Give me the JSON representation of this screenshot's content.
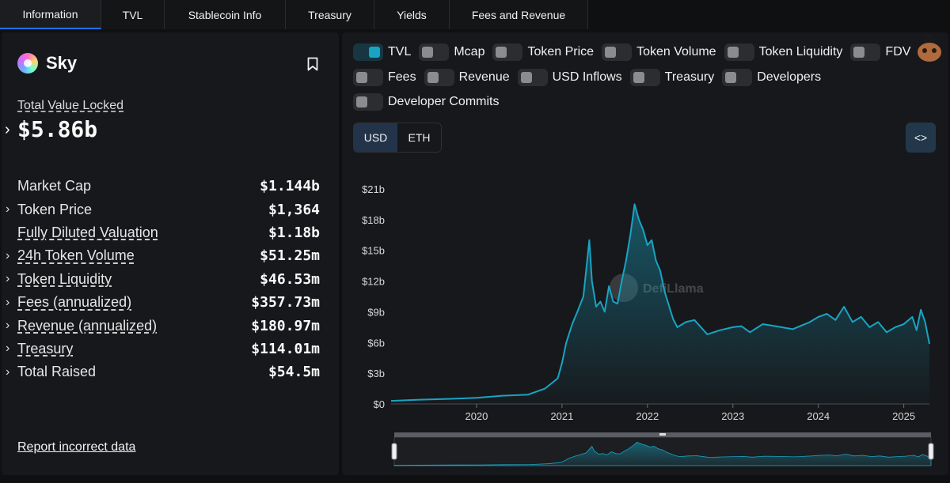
{
  "tabs": [
    {
      "label": "Information",
      "active": true
    },
    {
      "label": "TVL"
    },
    {
      "label": "Stablecoin Info"
    },
    {
      "label": "Treasury"
    },
    {
      "label": "Yields"
    },
    {
      "label": "Fees and Revenue"
    }
  ],
  "protocol": {
    "name": "Sky",
    "tvl_label": "Total Value Locked",
    "tvl_value": "$5.86b",
    "report_link": "Report incorrect data"
  },
  "stats": [
    {
      "label": "Market Cap",
      "value": "$1.144b",
      "chevron": false,
      "underline": false
    },
    {
      "label": "Token Price",
      "value": "$1,364",
      "chevron": true,
      "underline": false
    },
    {
      "label": "Fully Diluted Valuation",
      "value": "$1.18b",
      "chevron": false,
      "underline": true
    },
    {
      "label": "24h Token Volume",
      "value": "$51.25m",
      "chevron": true,
      "underline": true
    },
    {
      "label": "Token Liquidity",
      "value": "$46.53m",
      "chevron": true,
      "underline": true
    },
    {
      "label": "Fees (annualized)",
      "value": "$357.73m",
      "chevron": true,
      "underline": true
    },
    {
      "label": "Revenue (annualized)",
      "value": "$180.97m",
      "chevron": true,
      "underline": true
    },
    {
      "label": "Treasury",
      "value": "$114.01m",
      "chevron": true,
      "underline": true
    },
    {
      "label": "Total Raised",
      "value": "$54.5m",
      "chevron": true,
      "underline": false
    }
  ],
  "toggles": {
    "row1": [
      {
        "label": "TVL",
        "on": true
      },
      {
        "label": "Mcap",
        "on": false
      },
      {
        "label": "Token Price",
        "on": false
      },
      {
        "label": "Token Volume",
        "on": false
      },
      {
        "label": "Token Liquidity",
        "on": false
      },
      {
        "label": "FDV",
        "on": false
      }
    ],
    "row2": [
      {
        "label": "Fees",
        "on": false
      },
      {
        "label": "Revenue",
        "on": false
      },
      {
        "label": "USD Inflows",
        "on": false
      },
      {
        "label": "Treasury",
        "on": false
      },
      {
        "label": "Developers",
        "on": false
      }
    ],
    "row3": [
      {
        "label": "Developer Commits",
        "on": false
      }
    ]
  },
  "denomination": {
    "options": [
      "USD",
      "ETH"
    ],
    "selected": "USD"
  },
  "embed_label": "<>",
  "watermark": "DefiLlama",
  "colors": {
    "accent": "#18a4c3",
    "tab_active": "#2172e5"
  },
  "chart_data": {
    "type": "area",
    "series": [
      {
        "name": "TVL",
        "x": [
          2019.0,
          2019.3,
          2019.7,
          2020.0,
          2020.3,
          2020.6,
          2020.8,
          2020.95,
          2021.0,
          2021.05,
          2021.12,
          2021.18,
          2021.25,
          2021.32,
          2021.35,
          2021.4,
          2021.45,
          2021.5,
          2021.55,
          2021.6,
          2021.65,
          2021.7,
          2021.75,
          2021.8,
          2021.85,
          2021.9,
          2021.95,
          2022.0,
          2022.05,
          2022.1,
          2022.15,
          2022.2,
          2022.3,
          2022.35,
          2022.45,
          2022.55,
          2022.7,
          2022.85,
          2023.0,
          2023.1,
          2023.2,
          2023.35,
          2023.5,
          2023.7,
          2023.9,
          2024.0,
          2024.1,
          2024.2,
          2024.3,
          2024.4,
          2024.5,
          2024.6,
          2024.7,
          2024.8,
          2024.9,
          2025.0,
          2025.1,
          2025.15,
          2025.2,
          2025.25,
          2025.3
        ],
        "values": [
          0.3,
          0.4,
          0.5,
          0.6,
          0.8,
          0.9,
          1.5,
          2.5,
          4.0,
          6.0,
          7.8,
          9.0,
          10.5,
          16.0,
          12.0,
          9.5,
          10.0,
          9.0,
          11.5,
          10.0,
          9.8,
          12.0,
          14.0,
          16.5,
          19.5,
          18.0,
          17.0,
          15.5,
          16.0,
          14.0,
          13.0,
          11.0,
          8.3,
          7.5,
          8.0,
          8.2,
          6.8,
          7.2,
          7.5,
          7.6,
          7.0,
          7.8,
          7.6,
          7.3,
          8.0,
          8.5,
          8.8,
          8.2,
          9.5,
          8.0,
          8.5,
          7.5,
          8.0,
          7.0,
          7.5,
          7.8,
          8.5,
          7.2,
          9.2,
          8.0,
          5.86
        ]
      }
    ],
    "yticks": [
      "$0",
      "$3b",
      "$6b",
      "$9b",
      "$12b",
      "$15b",
      "$18b",
      "$21b"
    ],
    "ytick_values": [
      0,
      3,
      6,
      9,
      12,
      15,
      18,
      21
    ],
    "xticks": [
      "2020",
      "2021",
      "2022",
      "2023",
      "2024",
      "2025"
    ],
    "xtick_values": [
      2020,
      2021,
      2022,
      2023,
      2024,
      2025
    ],
    "xlim": [
      2019.0,
      2025.3
    ],
    "ylim": [
      0,
      21
    ],
    "grid": false,
    "legend": "none"
  }
}
